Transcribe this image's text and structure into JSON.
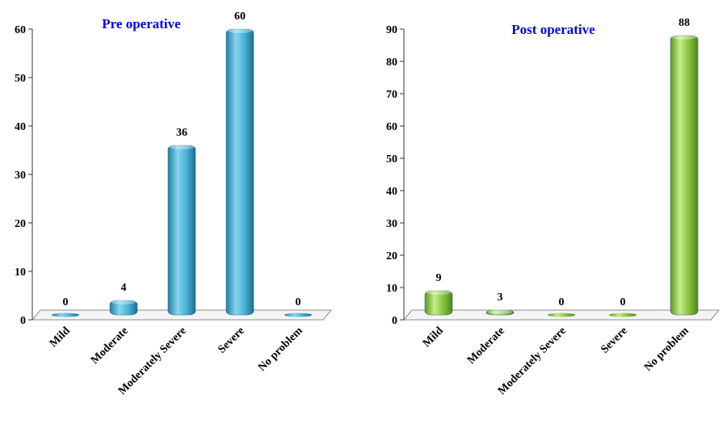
{
  "chart_data": [
    {
      "type": "bar",
      "title": "Pre operative",
      "categories": [
        "Mild",
        "Moderate",
        "Moderately Severe",
        "Severe",
        "No problem"
      ],
      "values": [
        0,
        4,
        36,
        60,
        0
      ],
      "ylim": [
        0,
        60
      ],
      "yticks": [
        0,
        10,
        20,
        30,
        40,
        50,
        60
      ],
      "grid": false,
      "color": "#4BB4D8"
    },
    {
      "type": "bar",
      "title": "Post operative",
      "categories": [
        "Mild",
        "Moderate",
        "Moderately Severe",
        "Severe",
        "No problem"
      ],
      "values": [
        9,
        3,
        0,
        0,
        88
      ],
      "ylim": [
        0,
        90
      ],
      "yticks": [
        0,
        10,
        20,
        30,
        40,
        50,
        60,
        70,
        80,
        90
      ],
      "grid": false,
      "color": "#8CC63F"
    }
  ]
}
